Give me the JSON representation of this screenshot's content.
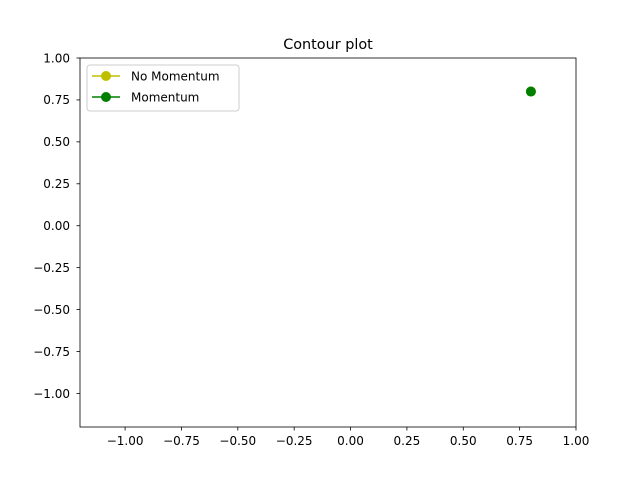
{
  "chart_data": {
    "type": "line",
    "title": "Contour plot",
    "xlabel": "",
    "ylabel": "",
    "xlim": [
      -1.2,
      1.0
    ],
    "ylim": [
      -1.2,
      1.0
    ],
    "x_ticks": [
      -1.0,
      -0.75,
      -0.5,
      -0.25,
      0.0,
      0.25,
      0.5,
      0.75,
      1.0
    ],
    "y_ticks": [
      -1.0,
      -0.75,
      -0.5,
      -0.25,
      0.0,
      0.25,
      0.5,
      0.75,
      1.0
    ],
    "x_tick_labels": [
      "−1.00",
      "−0.75",
      "−0.50",
      "−0.25",
      "0.00",
      "0.25",
      "0.50",
      "0.75",
      "1.00"
    ],
    "y_tick_labels": [
      "−1.00",
      "−0.75",
      "−0.50",
      "−0.25",
      "0.00",
      "0.25",
      "0.50",
      "0.75",
      "1.00"
    ],
    "grid": false,
    "legend": {
      "placement": "top-left",
      "entries": [
        "No Momentum",
        "Momentum"
      ]
    },
    "series": [
      {
        "name": "No Momentum",
        "color": "#bfbf00",
        "marker": "circle",
        "points": [
          {
            "x": 0.8,
            "y": 0.8
          }
        ]
      },
      {
        "name": "Momentum",
        "color": "#008000",
        "marker": "circle",
        "points": [
          {
            "x": 0.8,
            "y": 0.8
          }
        ]
      }
    ]
  }
}
